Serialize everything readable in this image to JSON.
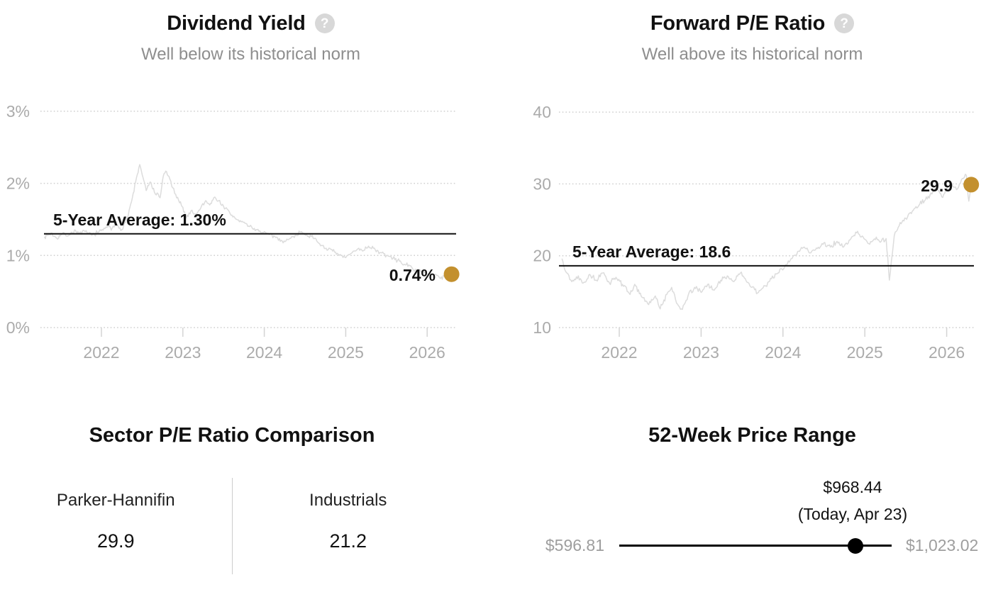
{
  "accent_gold": "#C3902E",
  "icons": {
    "help_glyph": "?"
  },
  "chart_data": [
    {
      "type": "line",
      "title": "Dividend Yield",
      "subtitle": "Well below its historical norm",
      "x_ticks": [
        2022,
        2023,
        2024,
        2025,
        2026
      ],
      "xlim": [
        2021.3,
        2026.42
      ],
      "y_ticks": [
        0,
        1,
        2,
        3
      ],
      "y_tick_labels": [
        "0%",
        "1%",
        "2%",
        "3%"
      ],
      "ylim": [
        -0.35,
        3.25
      ],
      "grid": "dotted-horizontal",
      "legend": "none",
      "average": 1.3,
      "average_label": "5-Year Average: 1.30%",
      "current": 0.74,
      "current_label": "0.74%",
      "series": [
        [
          2021.3,
          1.26
        ],
        [
          2021.38,
          1.31
        ],
        [
          2021.45,
          1.24
        ],
        [
          2021.52,
          1.3
        ],
        [
          2021.6,
          1.28
        ],
        [
          2021.68,
          1.35
        ],
        [
          2021.72,
          1.3
        ],
        [
          2021.8,
          1.33
        ],
        [
          2021.88,
          1.28
        ],
        [
          2021.95,
          1.32
        ],
        [
          2022.02,
          1.35
        ],
        [
          2022.08,
          1.42
        ],
        [
          2022.12,
          1.35
        ],
        [
          2022.18,
          1.44
        ],
        [
          2022.25,
          1.36
        ],
        [
          2022.33,
          1.56
        ],
        [
          2022.38,
          1.8
        ],
        [
          2022.42,
          2.02
        ],
        [
          2022.47,
          2.26
        ],
        [
          2022.52,
          2.04
        ],
        [
          2022.55,
          1.9
        ],
        [
          2022.6,
          2.02
        ],
        [
          2022.65,
          1.88
        ],
        [
          2022.72,
          1.8
        ],
        [
          2022.76,
          2.1
        ],
        [
          2022.79,
          2.17
        ],
        [
          2022.84,
          2.06
        ],
        [
          2022.9,
          1.86
        ],
        [
          2022.96,
          1.73
        ],
        [
          2023.0,
          1.67
        ],
        [
          2023.04,
          1.52
        ],
        [
          2023.1,
          1.62
        ],
        [
          2023.16,
          1.57
        ],
        [
          2023.22,
          1.66
        ],
        [
          2023.28,
          1.76
        ],
        [
          2023.33,
          1.7
        ],
        [
          2023.38,
          1.8
        ],
        [
          2023.44,
          1.76
        ],
        [
          2023.5,
          1.68
        ],
        [
          2023.58,
          1.58
        ],
        [
          2023.66,
          1.5
        ],
        [
          2023.74,
          1.46
        ],
        [
          2023.82,
          1.4
        ],
        [
          2023.9,
          1.36
        ],
        [
          2023.98,
          1.32
        ],
        [
          2024.06,
          1.29
        ],
        [
          2024.14,
          1.25
        ],
        [
          2024.22,
          1.2
        ],
        [
          2024.3,
          1.22
        ],
        [
          2024.38,
          1.28
        ],
        [
          2024.46,
          1.33
        ],
        [
          2024.52,
          1.29
        ],
        [
          2024.6,
          1.24
        ],
        [
          2024.68,
          1.16
        ],
        [
          2024.76,
          1.1
        ],
        [
          2024.84,
          1.06
        ],
        [
          2024.92,
          1.0
        ],
        [
          2025.0,
          0.97
        ],
        [
          2025.08,
          1.04
        ],
        [
          2025.16,
          1.1
        ],
        [
          2025.22,
          1.07
        ],
        [
          2025.28,
          1.13
        ],
        [
          2025.34,
          1.1
        ],
        [
          2025.42,
          1.04
        ],
        [
          2025.5,
          1.0
        ],
        [
          2025.58,
          0.96
        ],
        [
          2025.66,
          0.92
        ],
        [
          2025.74,
          0.87
        ],
        [
          2025.82,
          0.82
        ],
        [
          2025.9,
          0.79
        ],
        [
          2025.98,
          0.76
        ],
        [
          2026.06,
          0.74
        ],
        [
          2026.14,
          0.71
        ],
        [
          2026.22,
          0.69
        ],
        [
          2026.3,
          0.74
        ]
      ]
    },
    {
      "type": "line",
      "title": "Forward P/E Ratio",
      "subtitle": "Well above its historical norm",
      "x_ticks": [
        2022,
        2023,
        2024,
        2025,
        2026
      ],
      "xlim": [
        2021.3,
        2026.42
      ],
      "y_ticks": [
        10,
        20,
        30,
        40
      ],
      "y_tick_labels": [
        "10",
        "20",
        "30",
        "40"
      ],
      "ylim": [
        4,
        43
      ],
      "grid": "dotted-horizontal",
      "legend": "none",
      "average": 18.6,
      "average_label": "5-Year Average: 18.6",
      "current": 29.9,
      "current_label": "29.9",
      "series": [
        [
          2021.3,
          19.6
        ],
        [
          2021.36,
          17.6
        ],
        [
          2021.42,
          16.4
        ],
        [
          2021.5,
          17.2
        ],
        [
          2021.56,
          16.2
        ],
        [
          2021.64,
          17.4
        ],
        [
          2021.72,
          16.6
        ],
        [
          2021.8,
          17.6
        ],
        [
          2021.88,
          16.2
        ],
        [
          2021.96,
          17.0
        ],
        [
          2022.04,
          16.0
        ],
        [
          2022.12,
          14.8
        ],
        [
          2022.2,
          15.8
        ],
        [
          2022.28,
          14.2
        ],
        [
          2022.36,
          13.2
        ],
        [
          2022.44,
          14.4
        ],
        [
          2022.5,
          12.6
        ],
        [
          2022.58,
          14.6
        ],
        [
          2022.64,
          15.6
        ],
        [
          2022.7,
          13.4
        ],
        [
          2022.76,
          12.6
        ],
        [
          2022.84,
          14.4
        ],
        [
          2022.92,
          15.6
        ],
        [
          2023.0,
          14.9
        ],
        [
          2023.08,
          16.0
        ],
        [
          2023.16,
          15.2
        ],
        [
          2023.24,
          16.6
        ],
        [
          2023.32,
          17.2
        ],
        [
          2023.4,
          16.4
        ],
        [
          2023.48,
          17.6
        ],
        [
          2023.54,
          16.8
        ],
        [
          2023.62,
          15.6
        ],
        [
          2023.7,
          14.9
        ],
        [
          2023.78,
          15.8
        ],
        [
          2023.86,
          16.8
        ],
        [
          2023.94,
          17.6
        ],
        [
          2024.02,
          18.4
        ],
        [
          2024.1,
          19.6
        ],
        [
          2024.18,
          20.6
        ],
        [
          2024.26,
          21.2
        ],
        [
          2024.34,
          20.4
        ],
        [
          2024.42,
          21.0
        ],
        [
          2024.5,
          21.8
        ],
        [
          2024.58,
          21.2
        ],
        [
          2024.66,
          22.0
        ],
        [
          2024.74,
          21.2
        ],
        [
          2024.82,
          22.2
        ],
        [
          2024.9,
          23.2
        ],
        [
          2024.98,
          22.6
        ],
        [
          2025.06,
          21.6
        ],
        [
          2025.14,
          22.6
        ],
        [
          2025.2,
          22.0
        ],
        [
          2025.26,
          22.4
        ],
        [
          2025.3,
          16.6
        ],
        [
          2025.36,
          22.8
        ],
        [
          2025.42,
          24.2
        ],
        [
          2025.5,
          25.2
        ],
        [
          2025.58,
          26.2
        ],
        [
          2025.66,
          27.0
        ],
        [
          2025.74,
          27.8
        ],
        [
          2025.82,
          28.6
        ],
        [
          2025.88,
          29.4
        ],
        [
          2025.94,
          28.2
        ],
        [
          2026.0,
          29.2
        ],
        [
          2026.06,
          30.0
        ],
        [
          2026.12,
          29.2
        ],
        [
          2026.18,
          30.6
        ],
        [
          2026.24,
          31.2
        ],
        [
          2026.27,
          27.6
        ],
        [
          2026.3,
          29.9
        ]
      ]
    }
  ],
  "sector_comparison": {
    "title": "Sector P/E Ratio Comparison",
    "columns": [
      {
        "name": "Parker-Hannifin",
        "value": "29.9"
      },
      {
        "name": "Industrials",
        "value": "21.2"
      }
    ]
  },
  "price_range": {
    "title": "52-Week Price Range",
    "low": "$596.81",
    "high": "$1,023.02",
    "current": "$968.44",
    "current_note": "(Today, Apr 23)",
    "position_fraction": 0.87
  }
}
